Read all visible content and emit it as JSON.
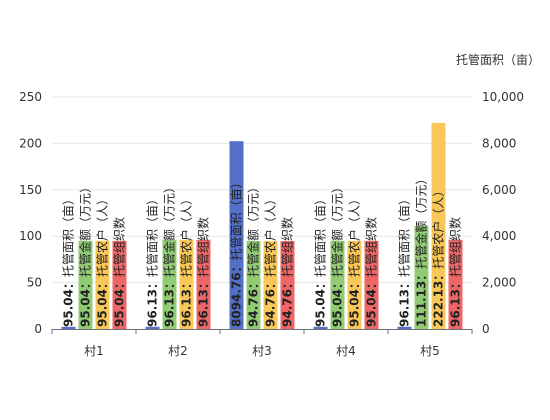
{
  "chart_data": {
    "type": "bar",
    "categories": [
      "村1",
      "村2",
      "村3",
      "村4",
      "村5"
    ],
    "y2_title": "托管面积（亩）",
    "y_left": {
      "min": 0,
      "max": 250,
      "ticks": [
        "0",
        "50",
        "100",
        "150",
        "200",
        "250"
      ]
    },
    "y_right": {
      "min": 0,
      "max": 10000,
      "ticks": [
        "0",
        "2,000",
        "4,000",
        "6,000",
        "8,000",
        "10,000"
      ]
    },
    "series": [
      {
        "name": "托管面积（亩）",
        "axis": "right",
        "color": "#5470c6",
        "values": [
          95.04,
          96.13,
          8094.76,
          95.04,
          96.13
        ]
      },
      {
        "name": "托管金额（万元）",
        "axis": "left",
        "color": "#91cc75",
        "values": [
          95.04,
          96.13,
          94.76,
          95.04,
          111.13
        ]
      },
      {
        "name": "托管农户（人）",
        "axis": "left",
        "color": "#fac858",
        "values": [
          95.04,
          96.13,
          94.76,
          95.04,
          222.13
        ]
      },
      {
        "name": "托管组织数",
        "axis": "left",
        "color": "#ee6666",
        "values": [
          95.04,
          96.13,
          94.76,
          95.04,
          96.13
        ]
      }
    ],
    "grid": true
  }
}
